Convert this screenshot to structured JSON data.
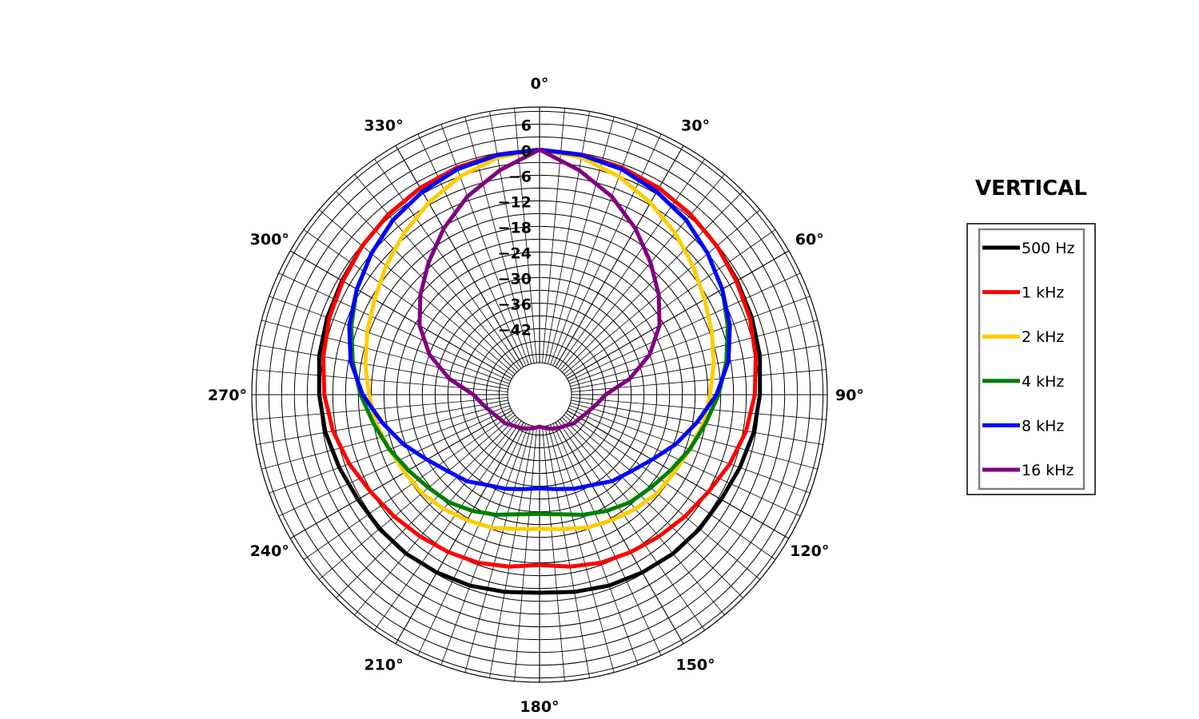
{
  "chart_data": {
    "type": "polar-line",
    "title": "VERTICAL",
    "angle_unit": "deg",
    "angle_zero": "top",
    "angle_direction": "clockwise",
    "angle_ticks": [
      0,
      30,
      60,
      90,
      120,
      150,
      180,
      210,
      240,
      270,
      300,
      330
    ],
    "angle_tick_labels": [
      "0°",
      "30°",
      "60°",
      "90°",
      "120°",
      "150°",
      "180°",
      "210°",
      "240°",
      "270°",
      "300°",
      "330°"
    ],
    "r_range": [
      -50,
      10
    ],
    "r_ticks": [
      6,
      0,
      -6,
      -12,
      -18,
      -24,
      -30,
      -36,
      -42
    ],
    "r_tick_labels": [
      "6",
      "0",
      "−12",
      "−18",
      "−24",
      "−30",
      "−36",
      "−42"
    ],
    "r_tick_labels_all": [
      "6",
      "0",
      "−6",
      "−12",
      "−18",
      "−24",
      "−30",
      "−36",
      "−42"
    ],
    "grid": true,
    "legend": {
      "placement": "right",
      "title": "VERTICAL"
    },
    "angles_deg": [
      0,
      10,
      20,
      30,
      40,
      50,
      60,
      70,
      80,
      90,
      100,
      110,
      120,
      130,
      140,
      150,
      160,
      170,
      180
    ],
    "series": [
      {
        "name": "500 Hz",
        "color": "#000000",
        "values": [
          0,
          -0.3,
          -0.8,
          -1.5,
          -2.3,
          -3.2,
          -4.0,
          -4.5,
          -5.0,
          -5.8,
          -6.5,
          -7.5,
          -8.3,
          -8.5,
          -8.8,
          -9.3,
          -9.8,
          -10.5,
          -11.0
        ]
      },
      {
        "name": "1 kHz",
        "color": "#ff0000",
        "values": [
          0,
          -0.3,
          -0.8,
          -1.5,
          -2.3,
          -3.2,
          -4.2,
          -5.0,
          -6.0,
          -7.0,
          -8.3,
          -10.0,
          -11.8,
          -13.0,
          -14.0,
          -14.8,
          -15.5,
          -16.5,
          -17.5
        ]
      },
      {
        "name": "2 kHz",
        "color": "#ffcc00",
        "values": [
          0,
          -1.0,
          -3.0,
          -5.5,
          -8.0,
          -10.5,
          -12.8,
          -14.5,
          -16.0,
          -17.5,
          -18.5,
          -20.0,
          -21.0,
          -21.5,
          -22.5,
          -23.5,
          -24.3,
          -25.5,
          -26.0
        ]
      },
      {
        "name": "4 kHz",
        "color": "#008000",
        "values": [
          0,
          -0.4,
          -1.2,
          -2.5,
          -4.0,
          -6.0,
          -8.0,
          -10.5,
          -13.0,
          -15.5,
          -18.0,
          -20.0,
          -22.0,
          -23.5,
          -24.5,
          -26.0,
          -27.5,
          -29.0,
          -29.5
        ]
      },
      {
        "name": "8 kHz",
        "color": "#0000ff",
        "values": [
          0,
          -0.4,
          -1.2,
          -2.5,
          -4.0,
          -6.0,
          -8.0,
          -10.0,
          -12.5,
          -16.0,
          -20.0,
          -23.5,
          -27.0,
          -29.5,
          -31.0,
          -33.0,
          -34.0,
          -35.0,
          -35.5
        ]
      },
      {
        "name": "16 kHz",
        "color": "#800080",
        "values": [
          0,
          -4.0,
          -8.0,
          -12.5,
          -17.0,
          -21.0,
          -25.0,
          -30.0,
          -36.0,
          -42.0,
          -44.0,
          -45.5,
          -46.5,
          -47.0,
          -48.0,
          -48.5,
          -49.0,
          -49.5,
          -50.0
        ]
      }
    ]
  }
}
